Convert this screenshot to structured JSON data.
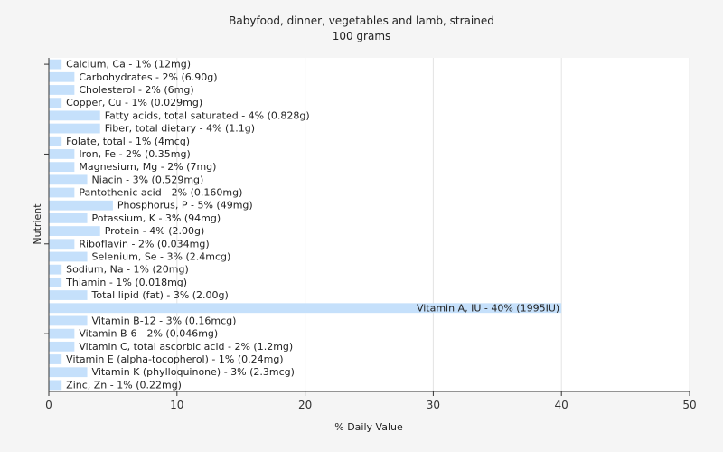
{
  "chart_data": {
    "type": "bar",
    "orientation": "horizontal",
    "title": "Babyfood, dinner, vegetables and lamb, strained",
    "subtitle": "100 grams",
    "xlabel": "% Daily Value",
    "ylabel": "Nutrient",
    "xlim": [
      0,
      50
    ],
    "xticks": [
      0,
      10,
      20,
      30,
      40,
      50
    ],
    "grid": true,
    "legend": "none",
    "bar_color": "#c5e0fb",
    "categories": [
      "Calcium, Ca",
      "Carbohydrates",
      "Cholesterol",
      "Copper, Cu",
      "Fatty acids, total saturated",
      "Fiber, total dietary",
      "Folate, total",
      "Iron, Fe",
      "Magnesium, Mg",
      "Niacin",
      "Pantothenic acid",
      "Phosphorus, P",
      "Potassium, K",
      "Protein",
      "Riboflavin",
      "Selenium, Se",
      "Sodium, Na",
      "Thiamin",
      "Total lipid (fat)",
      "Vitamin A, IU",
      "Vitamin B-12",
      "Vitamin B-6",
      "Vitamin C, total ascorbic acid",
      "Vitamin E (alpha-tocopherol)",
      "Vitamin K (phylloquinone)",
      "Zinc, Zn"
    ],
    "values": [
      1,
      2,
      2,
      1,
      4,
      4,
      1,
      2,
      2,
      3,
      2,
      5,
      3,
      4,
      2,
      3,
      1,
      1,
      3,
      40,
      3,
      2,
      2,
      1,
      3,
      1
    ],
    "labels": [
      "Calcium, Ca - 1% (12mg)",
      "Carbohydrates - 2% (6.90g)",
      "Cholesterol - 2% (6mg)",
      "Copper, Cu - 1% (0.029mg)",
      "Fatty acids, total saturated - 4% (0.828g)",
      "Fiber, total dietary - 4% (1.1g)",
      "Folate, total - 1% (4mcg)",
      "Iron, Fe - 2% (0.35mg)",
      "Magnesium, Mg - 2% (7mg)",
      "Niacin - 3% (0.529mg)",
      "Pantothenic acid - 2% (0.160mg)",
      "Phosphorus, P - 5% (49mg)",
      "Potassium, K - 3% (94mg)",
      "Protein - 4% (2.00g)",
      "Riboflavin - 2% (0.034mg)",
      "Selenium, Se - 3% (2.4mcg)",
      "Sodium, Na - 1% (20mg)",
      "Thiamin - 1% (0.018mg)",
      "Total lipid (fat) - 3% (2.00g)",
      "Vitamin A, IU - 40% (1995IU)",
      "Vitamin B-12 - 3% (0.16mcg)",
      "Vitamin B-6 - 2% (0.046mg)",
      "Vitamin C, total ascorbic acid - 2% (1.2mg)",
      "Vitamin E (alpha-tocopherol) - 1% (0.24mg)",
      "Vitamin K (phylloquinone) - 3% (2.3mcg)",
      "Zinc, Zn - 1% (0.22mg)"
    ]
  }
}
